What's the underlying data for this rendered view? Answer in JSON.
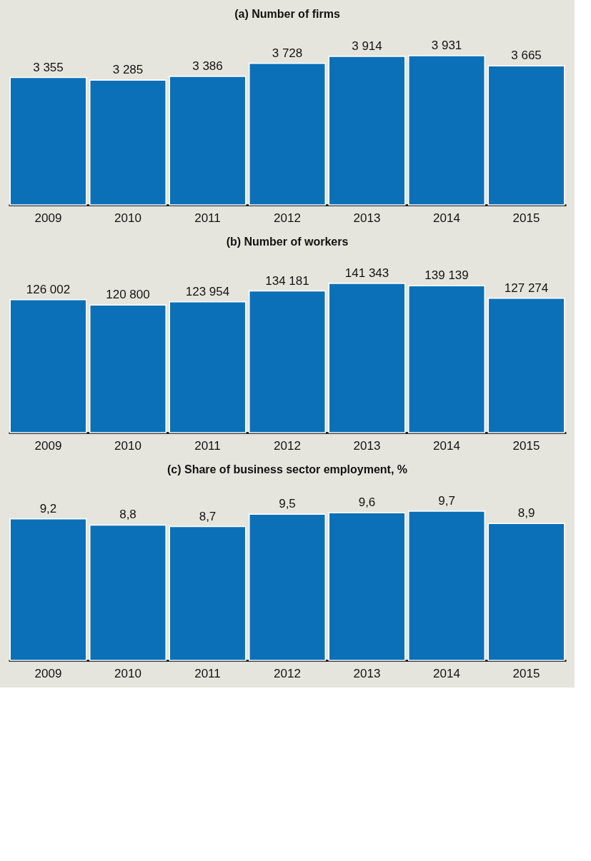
{
  "chart_data": [
    {
      "type": "bar",
      "title": "(a) Number of firms",
      "categories": [
        "2009",
        "2010",
        "2011",
        "2012",
        "2013",
        "2014",
        "2015"
      ],
      "series": [
        {
          "color": "#0b70b8",
          "values": [
            3355,
            3285,
            3386,
            3728,
            3914,
            3931,
            3665
          ],
          "value_labels": [
            "3 355",
            "3 285",
            "3 386",
            "3 728",
            "3 914",
            "3 931",
            "3 665"
          ]
        }
      ]
    },
    {
      "type": "bar",
      "title": "(b) Number of workers",
      "categories": [
        "2009",
        "2010",
        "2011",
        "2012",
        "2013",
        "2014",
        "2015"
      ],
      "series": [
        {
          "color": "#0b70b8",
          "values": [
            126002,
            120800,
            123954,
            134181,
            141343,
            139139,
            127274
          ],
          "value_labels": [
            "126 002",
            "120 800",
            "123 954",
            "134 181",
            "141 343",
            "139 139",
            "127 274"
          ]
        }
      ]
    },
    {
      "type": "bar",
      "title": "(c) Share of business sector employment, %",
      "categories": [
        "2009",
        "2010",
        "2011",
        "2012",
        "2013",
        "2014",
        "2015"
      ],
      "series": [
        {
          "color": "#0b70b8",
          "values": [
            9.2,
            8.8,
            8.7,
            9.5,
            9.6,
            9.7,
            8.9
          ],
          "value_labels": [
            "9,2",
            "8,8",
            "8,7",
            "9,5",
            "9,6",
            "9,7",
            "8,9"
          ]
        }
      ]
    }
  ]
}
